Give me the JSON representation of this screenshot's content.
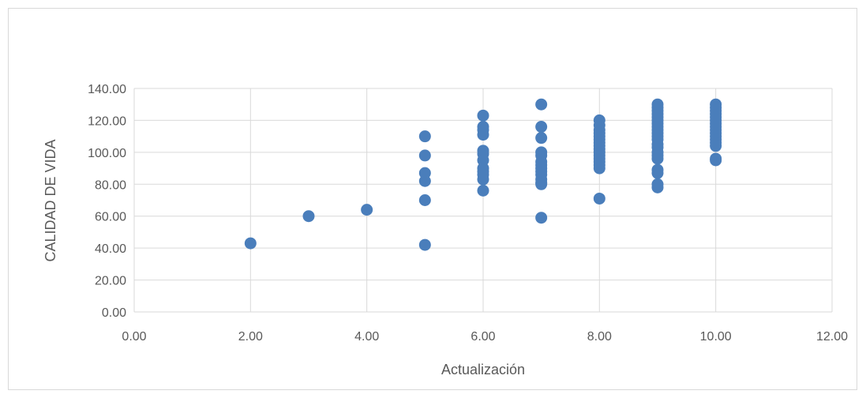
{
  "chart_data": {
    "type": "scatter",
    "title": "",
    "xlabel": "Actualización",
    "ylabel": "CALIDAD DE VIDA",
    "xlim": [
      0,
      12
    ],
    "ylim": [
      0,
      140
    ],
    "x_ticks": [
      "0.00",
      "2.00",
      "4.00",
      "6.00",
      "8.00",
      "10.00",
      "12.00"
    ],
    "y_ticks": [
      "0.00",
      "20.00",
      "40.00",
      "60.00",
      "80.00",
      "100.00",
      "120.00",
      "140.00"
    ],
    "grid": true,
    "legend": "none",
    "marker_color": "#4a7ebb",
    "points": [
      {
        "x": 2,
        "y": 43
      },
      {
        "x": 3,
        "y": 60
      },
      {
        "x": 4,
        "y": 64
      },
      {
        "x": 5,
        "y": 110
      },
      {
        "x": 5,
        "y": 98
      },
      {
        "x": 5,
        "y": 87
      },
      {
        "x": 5,
        "y": 82
      },
      {
        "x": 5,
        "y": 70
      },
      {
        "x": 5,
        "y": 42
      },
      {
        "x": 6,
        "y": 123
      },
      {
        "x": 6,
        "y": 116
      },
      {
        "x": 6,
        "y": 114
      },
      {
        "x": 6,
        "y": 111
      },
      {
        "x": 6,
        "y": 101
      },
      {
        "x": 6,
        "y": 99
      },
      {
        "x": 6,
        "y": 95
      },
      {
        "x": 6,
        "y": 90
      },
      {
        "x": 6,
        "y": 88
      },
      {
        "x": 6,
        "y": 86
      },
      {
        "x": 6,
        "y": 83
      },
      {
        "x": 6,
        "y": 76
      },
      {
        "x": 7,
        "y": 130
      },
      {
        "x": 7,
        "y": 116
      },
      {
        "x": 7,
        "y": 109
      },
      {
        "x": 7,
        "y": 100
      },
      {
        "x": 7,
        "y": 98
      },
      {
        "x": 7,
        "y": 94
      },
      {
        "x": 7,
        "y": 92
      },
      {
        "x": 7,
        "y": 90
      },
      {
        "x": 7,
        "y": 88
      },
      {
        "x": 7,
        "y": 86
      },
      {
        "x": 7,
        "y": 83
      },
      {
        "x": 7,
        "y": 81
      },
      {
        "x": 7,
        "y": 80
      },
      {
        "x": 7,
        "y": 59
      },
      {
        "x": 8,
        "y": 120
      },
      {
        "x": 8,
        "y": 117
      },
      {
        "x": 8,
        "y": 114
      },
      {
        "x": 8,
        "y": 112
      },
      {
        "x": 8,
        "y": 110
      },
      {
        "x": 8,
        "y": 108
      },
      {
        "x": 8,
        "y": 106
      },
      {
        "x": 8,
        "y": 104
      },
      {
        "x": 8,
        "y": 102
      },
      {
        "x": 8,
        "y": 100
      },
      {
        "x": 8,
        "y": 98
      },
      {
        "x": 8,
        "y": 96
      },
      {
        "x": 8,
        "y": 94
      },
      {
        "x": 8,
        "y": 92
      },
      {
        "x": 8,
        "y": 90
      },
      {
        "x": 8,
        "y": 71
      },
      {
        "x": 9,
        "y": 130
      },
      {
        "x": 9,
        "y": 128
      },
      {
        "x": 9,
        "y": 126
      },
      {
        "x": 9,
        "y": 124
      },
      {
        "x": 9,
        "y": 122
      },
      {
        "x": 9,
        "y": 120
      },
      {
        "x": 9,
        "y": 118
      },
      {
        "x": 9,
        "y": 116
      },
      {
        "x": 9,
        "y": 114
      },
      {
        "x": 9,
        "y": 112
      },
      {
        "x": 9,
        "y": 110
      },
      {
        "x": 9,
        "y": 108
      },
      {
        "x": 9,
        "y": 105
      },
      {
        "x": 9,
        "y": 103
      },
      {
        "x": 9,
        "y": 100
      },
      {
        "x": 9,
        "y": 98
      },
      {
        "x": 9,
        "y": 96
      },
      {
        "x": 9,
        "y": 89
      },
      {
        "x": 9,
        "y": 87
      },
      {
        "x": 9,
        "y": 80
      },
      {
        "x": 9,
        "y": 78
      },
      {
        "x": 10,
        "y": 130
      },
      {
        "x": 10,
        "y": 128
      },
      {
        "x": 10,
        "y": 126
      },
      {
        "x": 10,
        "y": 124
      },
      {
        "x": 10,
        "y": 122
      },
      {
        "x": 10,
        "y": 120
      },
      {
        "x": 10,
        "y": 118
      },
      {
        "x": 10,
        "y": 116
      },
      {
        "x": 10,
        "y": 114
      },
      {
        "x": 10,
        "y": 112
      },
      {
        "x": 10,
        "y": 110
      },
      {
        "x": 10,
        "y": 108
      },
      {
        "x": 10,
        "y": 106
      },
      {
        "x": 10,
        "y": 104
      },
      {
        "x": 10,
        "y": 96
      },
      {
        "x": 10,
        "y": 95
      }
    ]
  }
}
